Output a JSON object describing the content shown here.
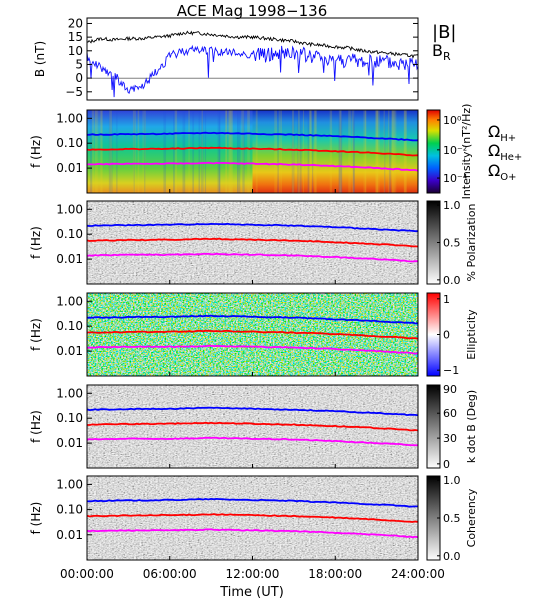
{
  "title": "ACE Mag 1998−136",
  "colors": {
    "b_total": "#000000",
    "b_r": "#1010ff",
    "omega_h": "#0000ff",
    "omega_he": "#ff0000",
    "omega_o": "#ff00ff"
  },
  "chart_data": [
    {
      "type": "line",
      "panel": "b-field",
      "ylabel": "B (nT)",
      "ylim": [
        -8,
        22
      ],
      "yticks": [
        "20",
        "15",
        "10",
        "5",
        "0",
        "−5"
      ],
      "ytick_values": [
        20,
        15,
        10,
        5,
        0,
        -5
      ],
      "legend": [
        "|B|",
        "B_R"
      ],
      "legend_display": [
        {
          "main": "|B|"
        },
        {
          "main": "B",
          "sub": "R"
        }
      ],
      "x": [
        0,
        1,
        2,
        3,
        4,
        5,
        6,
        7,
        8,
        9,
        10,
        11,
        12,
        13,
        14,
        15,
        16,
        17,
        18,
        19,
        20,
        21,
        22,
        23,
        24
      ],
      "series": [
        {
          "name": "|B|",
          "values": [
            13,
            14.5,
            14,
            14.5,
            14.5,
            15,
            15.5,
            16.5,
            16.5,
            16,
            15.5,
            15,
            15,
            14.5,
            14,
            13.5,
            12.5,
            12,
            11.5,
            11,
            10,
            9.5,
            9,
            8.5,
            8
          ]
        },
        {
          "name": "B_R",
          "values": [
            8,
            4,
            1,
            -5,
            -3,
            2,
            8,
            10,
            10.5,
            10,
            9.5,
            9,
            8.5,
            8.5,
            9,
            9,
            8,
            7.5,
            7,
            6.5,
            6,
            6,
            5.5,
            5,
            6
          ]
        }
      ]
    },
    {
      "type": "heatmap",
      "panel": "intensity",
      "ylabel": "f (Hz)",
      "yticks": [
        "1.00",
        "0.10",
        "0.01"
      ],
      "colorbar_label": "Intensity (nT²/Hz)",
      "colorbar_ticks": [
        "10⁰",
        "10⁻²",
        "10⁻⁴",
        "10⁻⁶"
      ],
      "legend": [
        "Ω_H+",
        "Ω_He+",
        "Ω_O+"
      ],
      "legend_display": [
        {
          "main": "Ω",
          "sub": "H+"
        },
        {
          "main": "Ω",
          "sub": "He+"
        },
        {
          "main": "Ω",
          "sub": "O+"
        }
      ]
    },
    {
      "type": "heatmap",
      "panel": "polarization",
      "ylabel": "f (Hz)",
      "yticks": [
        "1.00",
        "0.10",
        "0.01"
      ],
      "colorbar_label": "% Polarization",
      "colorbar_ticks": [
        "1.0",
        "0.5",
        "0.0"
      ]
    },
    {
      "type": "heatmap",
      "panel": "ellipticity",
      "ylabel": "f (Hz)",
      "yticks": [
        "1.00",
        "0.10",
        "0.01"
      ],
      "colorbar_label": "Ellipticity",
      "colorbar_ticks": [
        "1",
        "0",
        "−1"
      ]
    },
    {
      "type": "heatmap",
      "panel": "k-dot-b",
      "ylabel": "f (Hz)",
      "yticks": [
        "1.00",
        "0.10",
        "0.01"
      ],
      "colorbar_label": "k dot B (Deg)",
      "colorbar_ticks": [
        "90",
        "60",
        "30",
        "0"
      ]
    },
    {
      "type": "heatmap",
      "panel": "coherency",
      "ylabel": "f (Hz)",
      "yticks": [
        "1.00",
        "0.10",
        "0.01"
      ],
      "colorbar_label": "Coherency",
      "colorbar_ticks": [
        "1.0",
        "0.5",
        "0.0"
      ]
    }
  ],
  "gyrofrequency_lines": {
    "x_hours": [
      0,
      3,
      6,
      9,
      12,
      15,
      18,
      21,
      24
    ],
    "omega_h_hz": [
      0.22,
      0.23,
      0.24,
      0.26,
      0.24,
      0.22,
      0.19,
      0.16,
      0.13
    ],
    "omega_he_hz": [
      0.055,
      0.058,
      0.06,
      0.065,
      0.06,
      0.055,
      0.048,
      0.04,
      0.032
    ],
    "omega_o_hz": [
      0.014,
      0.015,
      0.015,
      0.016,
      0.015,
      0.014,
      0.012,
      0.01,
      0.008
    ]
  },
  "x_axis": {
    "ticks": [
      "00:00:00",
      "06:00:00",
      "12:00:00",
      "18:00:00",
      "24:00:00"
    ],
    "tick_hours": [
      0,
      6,
      12,
      18,
      24
    ],
    "label": "Time (UT)"
  }
}
